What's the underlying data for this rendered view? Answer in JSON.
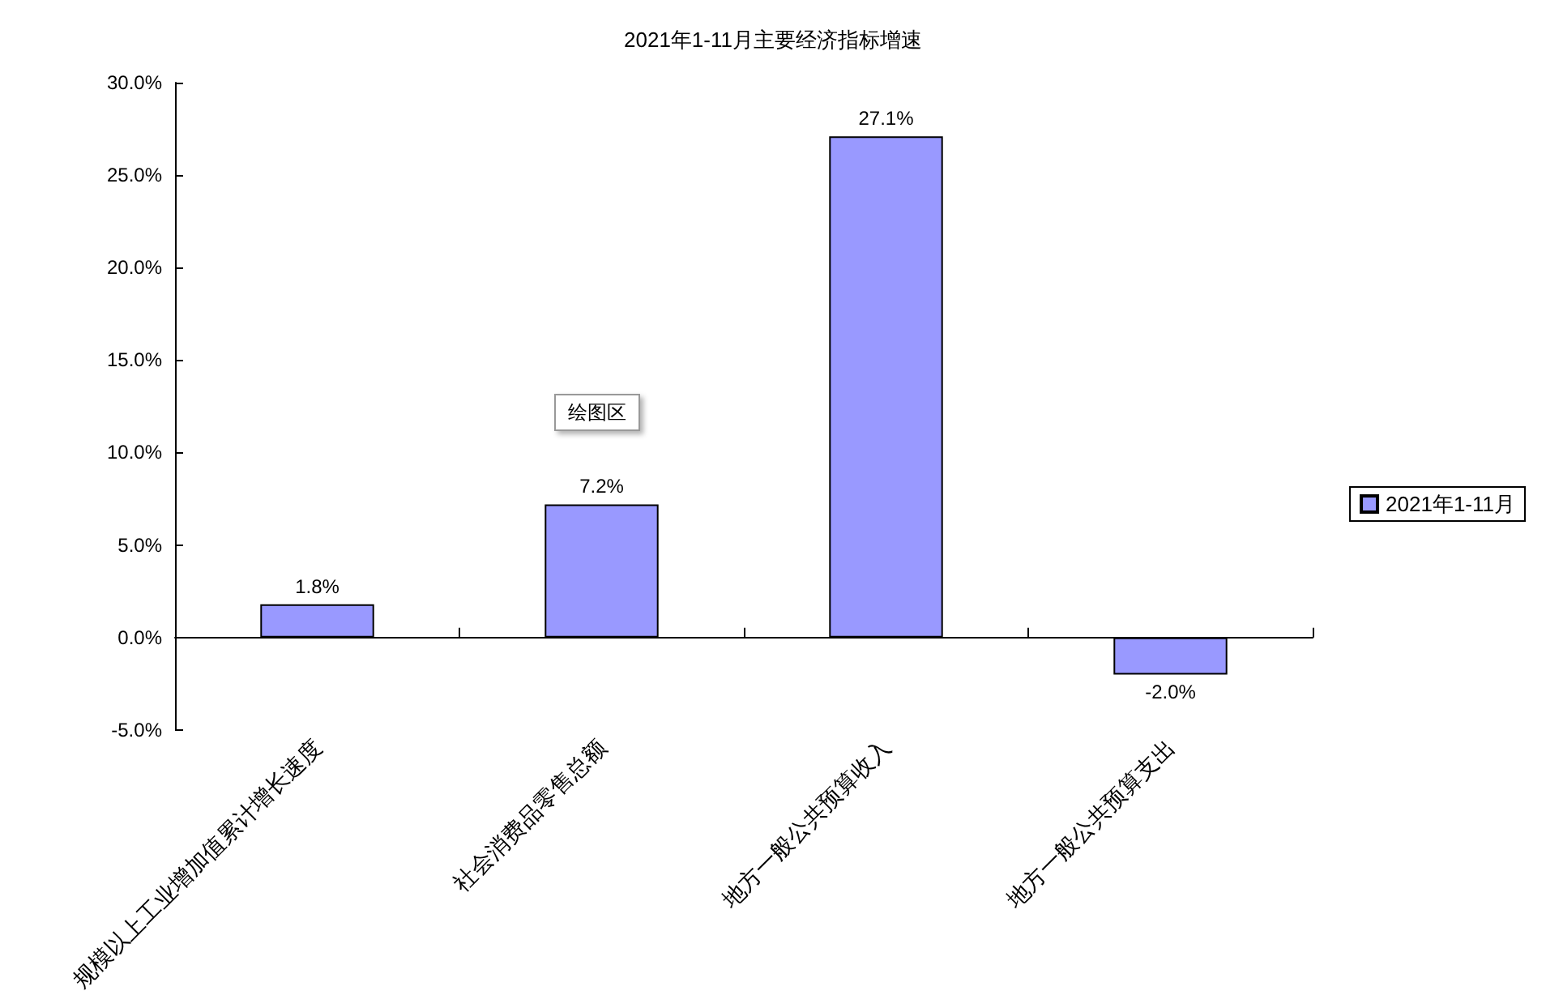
{
  "chart_data": {
    "type": "bar",
    "title": "2021年1-11月主要经济指标增速",
    "categories": [
      "规模以上工业增加值累计增长速度",
      "社会消费品零售总额",
      "地方一般公共预算收入",
      "地方一般公共预算支出"
    ],
    "series": [
      {
        "name": "2021年1-11月",
        "color": "#9999ff",
        "values": [
          1.8,
          7.2,
          27.1,
          -2.0
        ],
        "value_labels": [
          "1.8%",
          "7.2%",
          "27.1%",
          "-2.0%"
        ]
      }
    ],
    "ylim": [
      -5,
      30
    ],
    "yticks": [
      {
        "value": -5,
        "label": "-5.0%"
      },
      {
        "value": 0,
        "label": "0.0%"
      },
      {
        "value": 5,
        "label": "5.0%"
      },
      {
        "value": 10,
        "label": "10.0%"
      },
      {
        "value": 15,
        "label": "15.0%"
      },
      {
        "value": 20,
        "label": "20.0%"
      },
      {
        "value": 25,
        "label": "25.0%"
      },
      {
        "value": 30,
        "label": "30.0%"
      }
    ],
    "legend": "right",
    "annotations": [
      "绘图区"
    ]
  }
}
